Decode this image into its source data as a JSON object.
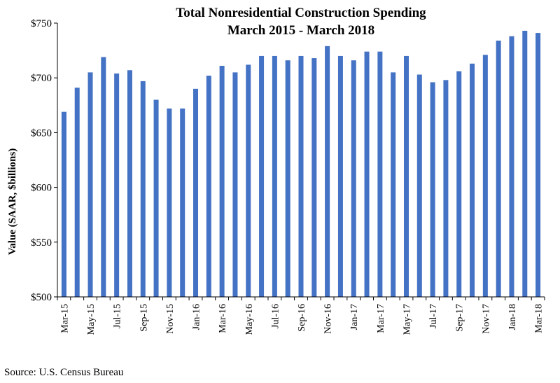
{
  "chart_data": {
    "type": "bar",
    "title": "Total Nonresidential Construction Spending",
    "subtitle": "March 2015 - March 2018",
    "ylabel": "Value (SAAR, $billions)",
    "xlabel": "",
    "ylim": [
      500,
      750
    ],
    "yticks": [
      "$500",
      "$550",
      "$600",
      "$650",
      "$700",
      "$750"
    ],
    "categories": [
      "Mar-15",
      "Apr-15",
      "May-15",
      "Jun-15",
      "Jul-15",
      "Aug-15",
      "Sep-15",
      "Oct-15",
      "Nov-15",
      "Dec-15",
      "Jan-16",
      "Feb-16",
      "Mar-16",
      "Apr-16",
      "May-16",
      "Jun-16",
      "Jul-16",
      "Aug-16",
      "Sep-16",
      "Oct-16",
      "Nov-16",
      "Dec-16",
      "Jan-17",
      "Feb-17",
      "Mar-17",
      "Apr-17",
      "May-17",
      "Jun-17",
      "Jul-17",
      "Aug-17",
      "Sep-17",
      "Oct-17",
      "Nov-17",
      "Dec-17",
      "Jan-18",
      "Feb-18",
      "Mar-18"
    ],
    "labeled_categories": [
      "Mar-15",
      "May-15",
      "Jul-15",
      "Sep-15",
      "Nov-15",
      "Jan-16",
      "Mar-16",
      "May-16",
      "Jul-16",
      "Sep-16",
      "Nov-16",
      "Jan-17",
      "Mar-17",
      "May-17",
      "Jul-17",
      "Sep-17",
      "Nov-17",
      "Jan-18",
      "Mar-18"
    ],
    "values": [
      669,
      691,
      705,
      719,
      704,
      707,
      697,
      680,
      672,
      672,
      690,
      702,
      711,
      705,
      712,
      720,
      720,
      716,
      720,
      718,
      729,
      720,
      716,
      724,
      724,
      705,
      720,
      703,
      696,
      698,
      706,
      713,
      721,
      734,
      738,
      743,
      741
    ],
    "bar_color": "#4472c4",
    "grid": false
  },
  "source": "Source:  U.S. Census Bureau"
}
